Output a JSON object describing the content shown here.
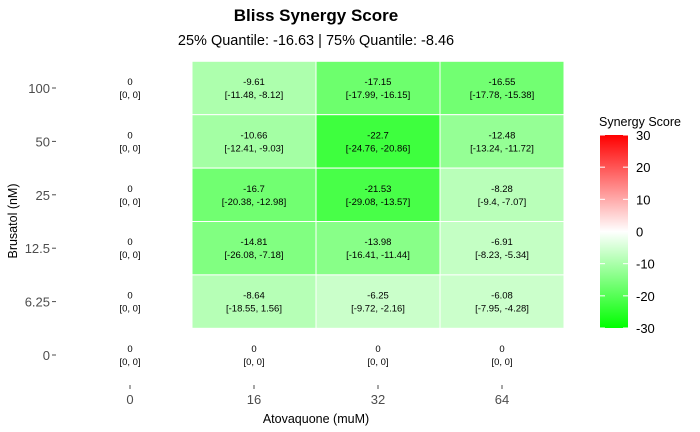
{
  "chart_data": {
    "type": "heatmap",
    "title": "Bliss Synergy Score",
    "subtitle": "25% Quantile: -16.63 | 75% Quantile: -8.46",
    "xlabel": "Atovaquone (muM)",
    "ylabel": "Brusatol (nM)",
    "x_categories": [
      "0",
      "16",
      "32",
      "64"
    ],
    "y_categories": [
      "0",
      "6.25",
      "12.5",
      "25",
      "50",
      "100"
    ],
    "cells": [
      {
        "x": "0",
        "y": "100",
        "value": 0,
        "ci": "[0, 0]"
      },
      {
        "x": "16",
        "y": "100",
        "value": -9.61,
        "ci": "[-11.48, -8.12]"
      },
      {
        "x": "32",
        "y": "100",
        "value": -17.15,
        "ci": "[-17.99, -16.15]"
      },
      {
        "x": "64",
        "y": "100",
        "value": -16.55,
        "ci": "[-17.78, -15.38]"
      },
      {
        "x": "0",
        "y": "50",
        "value": 0,
        "ci": "[0, 0]"
      },
      {
        "x": "16",
        "y": "50",
        "value": -10.66,
        "ci": "[-12.41, -9.03]"
      },
      {
        "x": "32",
        "y": "50",
        "value": -22.7,
        "ci": "[-24.76, -20.86]"
      },
      {
        "x": "64",
        "y": "50",
        "value": -12.48,
        "ci": "[-13.24, -11.72]"
      },
      {
        "x": "0",
        "y": "25",
        "value": 0,
        "ci": "[0, 0]"
      },
      {
        "x": "16",
        "y": "25",
        "value": -16.7,
        "ci": "[-20.38, -12.98]"
      },
      {
        "x": "32",
        "y": "25",
        "value": -21.53,
        "ci": "[-29.08, -13.57]"
      },
      {
        "x": "64",
        "y": "25",
        "value": -8.28,
        "ci": "[-9.4, -7.07]"
      },
      {
        "x": "0",
        "y": "12.5",
        "value": 0,
        "ci": "[0, 0]"
      },
      {
        "x": "16",
        "y": "12.5",
        "value": -14.81,
        "ci": "[-26.08, -7.18]"
      },
      {
        "x": "32",
        "y": "12.5",
        "value": -13.98,
        "ci": "[-16.41, -11.44]"
      },
      {
        "x": "64",
        "y": "12.5",
        "value": -6.91,
        "ci": "[-8.23, -5.34]"
      },
      {
        "x": "0",
        "y": "6.25",
        "value": 0,
        "ci": "[0, 0]"
      },
      {
        "x": "16",
        "y": "6.25",
        "value": -8.64,
        "ci": "[-18.55, 1.56]"
      },
      {
        "x": "32",
        "y": "6.25",
        "value": -6.25,
        "ci": "[-9.72, -2.16]"
      },
      {
        "x": "64",
        "y": "6.25",
        "value": -6.08,
        "ci": "[-7.95, -4.28]"
      },
      {
        "x": "0",
        "y": "0",
        "value": 0,
        "ci": "[0, 0]"
      },
      {
        "x": "16",
        "y": "0",
        "value": 0,
        "ci": "[0, 0]"
      },
      {
        "x": "32",
        "y": "0",
        "value": 0,
        "ci": "[0, 0]"
      },
      {
        "x": "64",
        "y": "0",
        "value": 0,
        "ci": "[0, 0]"
      }
    ],
    "legend": {
      "title": "Synergy Score",
      "range": [
        -30,
        30
      ],
      "ticks": [
        30,
        20,
        10,
        0,
        -10,
        -20,
        -30
      ],
      "colors": {
        "low": "#00ff00",
        "mid": "#ffffff",
        "high": "#ff0000"
      },
      "placement": "right"
    },
    "grid": false
  }
}
